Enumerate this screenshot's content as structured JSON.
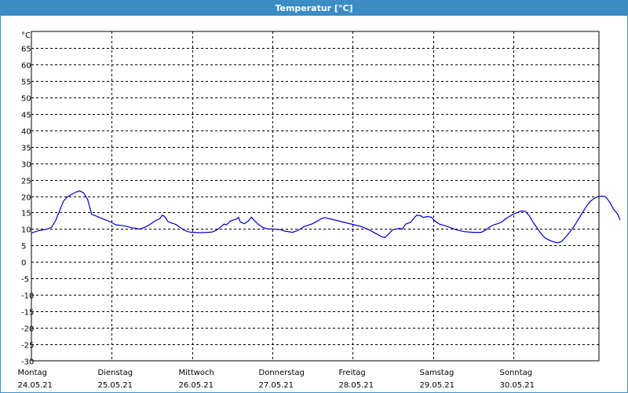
{
  "window": {
    "title": "Temperatur [°C]"
  },
  "chart_data": {
    "type": "line",
    "title": "Temperatur [°C]",
    "ylabel": "°C",
    "xlabel": "",
    "ylim": [
      -30,
      70
    ],
    "yticks": [
      65,
      60,
      55,
      50,
      45,
      40,
      35,
      30,
      25,
      20,
      15,
      10,
      5,
      0,
      -5,
      -10,
      -15,
      -20,
      -25,
      -30
    ],
    "xlim": [
      0,
      7
    ],
    "grid": true,
    "days": [
      {
        "day": "Montag",
        "date": "24.05.21"
      },
      {
        "day": "Dienstag",
        "date": "25.05.21"
      },
      {
        "day": "Mittwoch",
        "date": "26.05.21"
      },
      {
        "day": "Donnerstag",
        "date": "27.05.21"
      },
      {
        "day": "Freitag",
        "date": "28.05.21"
      },
      {
        "day": "Samstag",
        "date": "29.05.21"
      },
      {
        "day": "Sonntag",
        "date": "30.05.21"
      }
    ],
    "line_color": "#0000cc",
    "series": [
      {
        "values": [
          [
            0.0,
            8.8
          ],
          [
            0.1,
            9.6
          ],
          [
            0.2,
            10.0
          ],
          [
            0.25,
            10.5
          ],
          [
            0.3,
            12.5
          ],
          [
            0.35,
            15.5
          ],
          [
            0.4,
            18.5
          ],
          [
            0.45,
            19.8
          ],
          [
            0.5,
            20.5
          ],
          [
            0.55,
            21.2
          ],
          [
            0.6,
            21.6
          ],
          [
            0.65,
            21.0
          ],
          [
            0.7,
            19.0
          ],
          [
            0.75,
            14.5
          ],
          [
            0.8,
            14.0
          ],
          [
            0.9,
            13.0
          ],
          [
            1.0,
            12.0
          ],
          [
            1.05,
            11.3
          ],
          [
            1.15,
            11.0
          ],
          [
            1.25,
            10.4
          ],
          [
            1.3,
            10.2
          ],
          [
            1.35,
            10.0
          ],
          [
            1.4,
            10.4
          ],
          [
            1.45,
            11.0
          ],
          [
            1.5,
            11.8
          ],
          [
            1.55,
            12.6
          ],
          [
            1.6,
            13.2
          ],
          [
            1.63,
            14.2
          ],
          [
            1.66,
            13.8
          ],
          [
            1.7,
            12.3
          ],
          [
            1.75,
            11.8
          ],
          [
            1.8,
            11.4
          ],
          [
            1.85,
            10.5
          ],
          [
            1.9,
            9.7
          ],
          [
            1.95,
            9.2
          ],
          [
            2.0,
            9.0
          ],
          [
            2.1,
            8.9
          ],
          [
            2.2,
            9.0
          ],
          [
            2.25,
            9.1
          ],
          [
            2.3,
            9.6
          ],
          [
            2.35,
            10.5
          ],
          [
            2.4,
            11.5
          ],
          [
            2.43,
            11.3
          ],
          [
            2.45,
            11.8
          ],
          [
            2.48,
            12.4
          ],
          [
            2.52,
            12.8
          ],
          [
            2.55,
            13.0
          ],
          [
            2.58,
            13.5
          ],
          [
            2.6,
            12.2
          ],
          [
            2.65,
            11.6
          ],
          [
            2.7,
            12.4
          ],
          [
            2.74,
            13.6
          ],
          [
            2.78,
            12.5
          ],
          [
            2.82,
            11.5
          ],
          [
            2.88,
            10.5
          ],
          [
            2.95,
            10.0
          ],
          [
            3.0,
            10.0
          ],
          [
            3.1,
            9.8
          ],
          [
            3.15,
            9.4
          ],
          [
            3.25,
            9.0
          ],
          [
            3.3,
            9.4
          ],
          [
            3.35,
            10.0
          ],
          [
            3.4,
            10.8
          ],
          [
            3.5,
            11.6
          ],
          [
            3.55,
            12.3
          ],
          [
            3.6,
            13.0
          ],
          [
            3.65,
            13.5
          ],
          [
            3.7,
            13.2
          ],
          [
            3.8,
            12.6
          ],
          [
            3.9,
            12.0
          ],
          [
            4.0,
            11.4
          ],
          [
            4.1,
            10.8
          ],
          [
            4.2,
            9.8
          ],
          [
            4.3,
            8.5
          ],
          [
            4.35,
            7.8
          ],
          [
            4.4,
            7.4
          ],
          [
            4.45,
            8.5
          ],
          [
            4.5,
            9.8
          ],
          [
            4.58,
            10.2
          ],
          [
            4.62,
            10.0
          ],
          [
            4.66,
            11.5
          ],
          [
            4.72,
            12.0
          ],
          [
            4.77,
            13.5
          ],
          [
            4.8,
            14.2
          ],
          [
            4.85,
            14.0
          ],
          [
            4.88,
            13.5
          ],
          [
            4.93,
            13.8
          ],
          [
            4.98,
            13.6
          ],
          [
            5.02,
            12.5
          ],
          [
            5.08,
            11.5
          ],
          [
            5.15,
            11.0
          ],
          [
            5.2,
            10.6
          ],
          [
            5.3,
            9.7
          ],
          [
            5.4,
            9.2
          ],
          [
            5.5,
            9.0
          ],
          [
            5.6,
            9.0
          ],
          [
            5.65,
            9.6
          ],
          [
            5.7,
            10.5
          ],
          [
            5.75,
            11.2
          ],
          [
            5.85,
            12.0
          ],
          [
            5.9,
            13.0
          ],
          [
            6.0,
            14.5
          ],
          [
            6.1,
            15.5
          ],
          [
            6.15,
            15.4
          ],
          [
            6.2,
            14.0
          ],
          [
            6.25,
            12.0
          ],
          [
            6.3,
            10.2
          ],
          [
            6.35,
            8.5
          ],
          [
            6.4,
            7.2
          ],
          [
            6.45,
            6.6
          ],
          [
            6.5,
            6.1
          ],
          [
            6.55,
            5.8
          ],
          [
            6.6,
            6.2
          ],
          [
            6.65,
            7.5
          ],
          [
            6.7,
            9.0
          ],
          [
            6.75,
            10.5
          ],
          [
            6.8,
            12.5
          ],
          [
            6.85,
            14.5
          ],
          [
            6.9,
            16.5
          ],
          [
            6.95,
            18.2
          ],
          [
            7.0,
            19.2
          ],
          [
            7.05,
            19.8
          ],
          [
            7.1,
            20.0
          ],
          [
            7.15,
            19.8
          ],
          [
            7.2,
            18.2
          ],
          [
            7.25,
            16.0
          ],
          [
            7.3,
            14.5
          ],
          [
            7.33,
            12.8
          ]
        ]
      }
    ]
  }
}
